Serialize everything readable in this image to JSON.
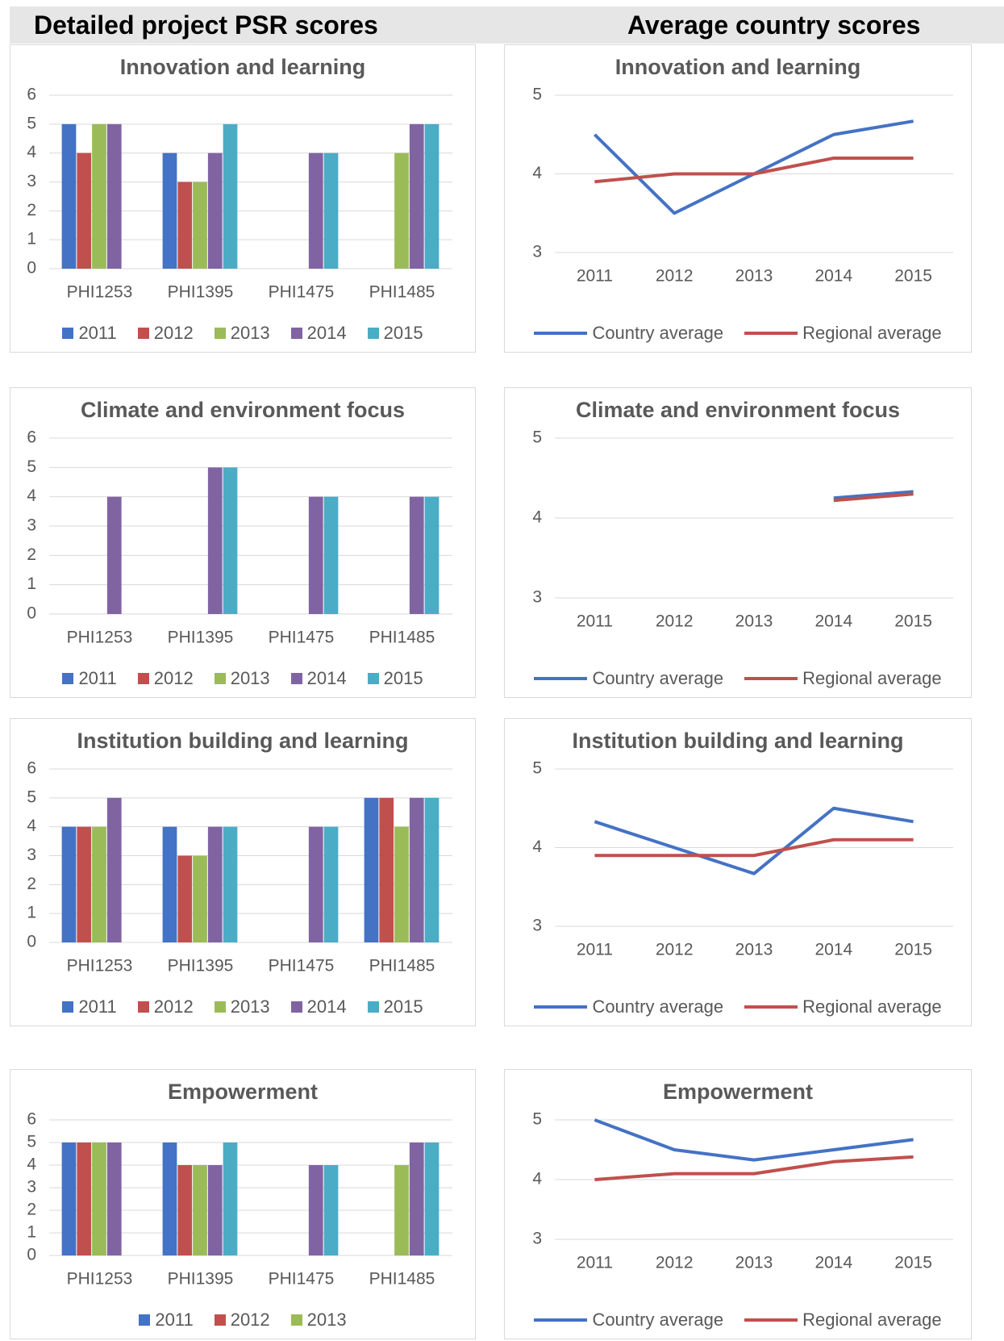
{
  "headers": {
    "left": "Detailed project PSR scores",
    "right": "Average country scores"
  },
  "chart_data": [
    {
      "type": "bar",
      "title": "Innovation and learning",
      "categories": [
        "PHI1253",
        "PHI1395",
        "PHI1475",
        "PHI1485"
      ],
      "series": [
        {
          "name": "2011",
          "color": "#4472c4",
          "values": [
            5,
            4,
            null,
            null
          ]
        },
        {
          "name": "2012",
          "color": "#c0504d",
          "values": [
            4,
            3,
            null,
            null
          ]
        },
        {
          "name": "2013",
          "color": "#9bbb59",
          "values": [
            5,
            3,
            null,
            4
          ]
        },
        {
          "name": "2014",
          "color": "#8064a2",
          "values": [
            5,
            4,
            4,
            5
          ]
        },
        {
          "name": "2015",
          "color": "#4bacc6",
          "values": [
            null,
            5,
            4,
            5
          ]
        }
      ],
      "ylim": [
        0,
        6
      ],
      "yticks": [
        0,
        1,
        2,
        3,
        4,
        5,
        6
      ],
      "grid": true,
      "legend": "bottom"
    },
    {
      "type": "line",
      "title": "Innovation and learning",
      "categories": [
        "2011",
        "2012",
        "2013",
        "2014",
        "2015"
      ],
      "series": [
        {
          "name": "Country average",
          "color": "#4472c4",
          "values": [
            4.5,
            3.5,
            4,
            4.5,
            4.67
          ]
        },
        {
          "name": "Regional average",
          "color": "#c0504d",
          "values": [
            3.9,
            4,
            4,
            4.2,
            4.2
          ]
        }
      ],
      "ylim": [
        3,
        5
      ],
      "yticks": [
        3,
        4,
        5
      ],
      "grid": true,
      "legend": "bottom"
    },
    {
      "type": "bar",
      "title": "Climate and environment focus",
      "categories": [
        "PHI1253",
        "PHI1395",
        "PHI1475",
        "PHI1485"
      ],
      "series": [
        {
          "name": "2011",
          "color": "#4472c4",
          "values": [
            null,
            null,
            null,
            null
          ]
        },
        {
          "name": "2012",
          "color": "#c0504d",
          "values": [
            null,
            null,
            null,
            null
          ]
        },
        {
          "name": "2013",
          "color": "#9bbb59",
          "values": [
            null,
            null,
            null,
            null
          ]
        },
        {
          "name": "2014",
          "color": "#8064a2",
          "values": [
            4,
            5,
            4,
            4
          ]
        },
        {
          "name": "2015",
          "color": "#4bacc6",
          "values": [
            null,
            5,
            4,
            4
          ]
        }
      ],
      "ylim": [
        0,
        6
      ],
      "yticks": [
        0,
        1,
        2,
        3,
        4,
        5,
        6
      ],
      "grid": true,
      "legend": "bottom"
    },
    {
      "type": "line",
      "title": "Climate and environment focus",
      "categories": [
        "2011",
        "2012",
        "2013",
        "2014",
        "2015"
      ],
      "series": [
        {
          "name": "Country average",
          "color": "#4472c4",
          "values": [
            null,
            null,
            null,
            4.25,
            4.33
          ]
        },
        {
          "name": "Regional average",
          "color": "#c0504d",
          "values": [
            null,
            null,
            null,
            4.22,
            4.3
          ]
        }
      ],
      "ylim": [
        3,
        5
      ],
      "yticks": [
        3,
        4,
        5
      ],
      "grid": true,
      "legend": "bottom"
    },
    {
      "type": "bar",
      "title": "Institution building and learning",
      "categories": [
        "PHI1253",
        "PHI1395",
        "PHI1475",
        "PHI1485"
      ],
      "series": [
        {
          "name": "2011",
          "color": "#4472c4",
          "values": [
            4,
            4,
            null,
            5
          ]
        },
        {
          "name": "2012",
          "color": "#c0504d",
          "values": [
            4,
            3,
            null,
            5
          ]
        },
        {
          "name": "2013",
          "color": "#9bbb59",
          "values": [
            4,
            3,
            null,
            4
          ]
        },
        {
          "name": "2014",
          "color": "#8064a2",
          "values": [
            5,
            4,
            4,
            5
          ]
        },
        {
          "name": "2015",
          "color": "#4bacc6",
          "values": [
            null,
            4,
            4,
            5
          ]
        }
      ],
      "ylim": [
        0,
        6
      ],
      "yticks": [
        0,
        1,
        2,
        3,
        4,
        5,
        6
      ],
      "grid": true,
      "legend": "bottom"
    },
    {
      "type": "line",
      "title": "Institution building and learning",
      "categories": [
        "2011",
        "2012",
        "2013",
        "2014",
        "2015"
      ],
      "series": [
        {
          "name": "Country average",
          "color": "#4472c4",
          "values": [
            4.33,
            4,
            3.67,
            4.5,
            4.33
          ]
        },
        {
          "name": "Regional average",
          "color": "#c0504d",
          "values": [
            3.9,
            3.9,
            3.9,
            4.1,
            4.1
          ]
        }
      ],
      "ylim": [
        3,
        5
      ],
      "yticks": [
        3,
        4,
        5
      ],
      "grid": true,
      "legend": "bottom"
    },
    {
      "type": "bar",
      "title": "Empowerment",
      "categories": [
        "PHI1253",
        "PHI1395",
        "PHI1475",
        "PHI1485"
      ],
      "series": [
        {
          "name": "2011",
          "color": "#4472c4",
          "values": [
            5,
            5,
            null,
            null
          ]
        },
        {
          "name": "2012",
          "color": "#c0504d",
          "values": [
            5,
            4,
            null,
            null
          ]
        },
        {
          "name": "2013",
          "color": "#9bbb59",
          "values": [
            5,
            4,
            null,
            4
          ]
        },
        {
          "color": "#8064a2",
          "values": [
            5,
            4,
            4,
            5
          ]
        },
        {
          "color": "#4bacc6",
          "values": [
            null,
            5,
            4,
            5
          ]
        }
      ],
      "ylim": [
        0,
        6
      ],
      "yticks": [
        0,
        1,
        2,
        3,
        4,
        5,
        6
      ],
      "grid": true,
      "legend": "bottom"
    },
    {
      "type": "line",
      "title": "Empowerment",
      "categories": [
        "2011",
        "2012",
        "2013",
        "2014",
        "2015"
      ],
      "series": [
        {
          "name": "Country average",
          "color": "#4472c4",
          "values": [
            5,
            4.5,
            4.33,
            4.5,
            4.67
          ]
        },
        {
          "name": "Regional average",
          "color": "#c0504d",
          "values": [
            4,
            4.1,
            4.1,
            4.3,
            4.38
          ]
        }
      ],
      "ylim": [
        3,
        5
      ],
      "yticks": [
        3,
        4,
        5
      ],
      "grid": true,
      "legend": "bottom"
    }
  ]
}
